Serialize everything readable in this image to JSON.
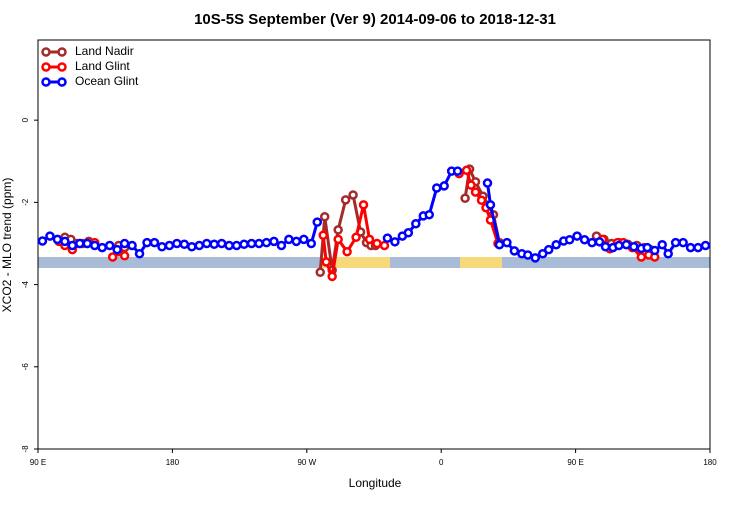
{
  "chart_data": {
    "type": "line",
    "title": "10S-5S September (Ver 9)   2014-09-06 to 2018-12-31",
    "x_label": "Longitude",
    "y_label": "XCO2 - MLO trend (ppm)",
    "xlim": [
      90,
      540
    ],
    "ylim": [
      -8,
      1.95
    ],
    "xticks": [
      {
        "value": 90,
        "label": "90 E"
      },
      {
        "value": 180,
        "label": "180"
      },
      {
        "value": 270,
        "label": "90 W"
      },
      {
        "value": 360,
        "label": "0"
      },
      {
        "value": 450,
        "label": "90 E"
      },
      {
        "value": 540,
        "label": "180"
      }
    ],
    "yticks": [
      -8,
      -6,
      -4,
      -2,
      0
    ],
    "legend": "top-left",
    "series": [
      {
        "name": "Land Nadir",
        "color": "#a52a2a",
        "x": [
          104,
          108,
          112,
          116,
          120,
          124,
          128,
          144,
          148,
          150,
          279,
          282,
          287,
          291,
          296,
          301,
          306,
          310,
          313,
          316,
          320,
          376,
          379,
          383,
          388,
          392,
          395,
          399,
          402,
          464,
          469,
          474,
          479,
          485,
          491,
          496,
          500
        ],
        "values": [
          -2.95,
          -2.85,
          -2.9,
          -3.0,
          -3.0,
          -2.95,
          null,
          -3.05,
          -3.1,
          null,
          -3.7,
          -2.35,
          -3.65,
          -2.67,
          -1.94,
          -1.82,
          -2.72,
          -2.98,
          -3.05,
          -3.05,
          null,
          -1.9,
          -1.19,
          -1.5,
          -1.85,
          -2.08,
          -2.3,
          -2.98,
          null,
          -2.82,
          -2.9,
          -3.0,
          -2.98,
          -3.02,
          -3.05,
          -3.1,
          -3.15
        ]
      },
      {
        "name": "Land Glint",
        "color": "#ff0000",
        "x": [
          105,
          108,
          113,
          118,
          123,
          128,
          132,
          140,
          144,
          148,
          150,
          281,
          283,
          287,
          291,
          297,
          303,
          308,
          312,
          317,
          322,
          325,
          372,
          377,
          380,
          383,
          387,
          390,
          393,
          398,
          402,
          468,
          473,
          478,
          482,
          488,
          494,
          499,
          503
        ],
        "values": [
          -2.95,
          -3.05,
          -3.15,
          -3.0,
          -3.0,
          -2.98,
          null,
          -3.33,
          -3.2,
          -3.3,
          null,
          -2.8,
          -3.45,
          -3.8,
          -2.9,
          -3.2,
          -2.85,
          -2.06,
          -2.9,
          -3.0,
          -3.05,
          null,
          -1.3,
          -1.22,
          -1.58,
          -1.75,
          -1.95,
          -2.13,
          -2.43,
          -3.0,
          null,
          -2.9,
          -3.13,
          -2.98,
          -2.98,
          -3.1,
          -3.33,
          -3.28,
          -3.33
        ]
      },
      {
        "name": "Ocean Glint",
        "color": "#0000ff",
        "x": [
          93,
          98,
          103,
          108,
          113,
          118,
          123,
          128,
          133,
          138,
          143,
          148,
          153,
          158,
          163,
          168,
          173,
          178,
          183,
          188,
          193,
          198,
          203,
          208,
          213,
          218,
          223,
          228,
          233,
          238,
          243,
          248,
          253,
          258,
          263,
          268,
          273,
          277,
          300,
          324,
          329,
          334,
          338,
          343,
          348,
          352,
          357,
          362,
          367,
          371,
          380,
          391,
          393,
          399,
          404,
          409,
          414,
          418,
          423,
          428,
          432,
          437,
          442,
          446,
          451,
          456,
          461,
          466,
          470,
          475,
          479,
          484,
          489,
          494,
          498,
          503,
          508,
          512,
          517,
          522,
          527,
          532,
          537
        ],
        "values": [
          -2.94,
          -2.82,
          -2.9,
          -2.95,
          -3.05,
          -3.0,
          -3.0,
          -3.05,
          -3.1,
          -3.05,
          -3.15,
          -3.0,
          -3.05,
          -3.25,
          -2.98,
          -2.98,
          -3.08,
          -3.05,
          -3.0,
          -3.02,
          -3.08,
          -3.05,
          -3.0,
          -3.02,
          -3.0,
          -3.05,
          -3.05,
          -3.02,
          -3.0,
          -3.0,
          -2.98,
          -2.95,
          -3.05,
          -2.9,
          -2.95,
          -2.9,
          -3.0,
          -2.48,
          null,
          -2.87,
          -2.96,
          -2.82,
          -2.74,
          -2.52,
          -2.33,
          -2.3,
          -1.65,
          -1.6,
          -1.24,
          -1.24,
          null,
          -1.53,
          -2.06,
          -3.03,
          -2.98,
          -3.18,
          -3.25,
          -3.28,
          -3.35,
          -3.25,
          -3.15,
          -3.03,
          -2.94,
          -2.91,
          -2.82,
          -2.91,
          -2.98,
          -2.96,
          -3.08,
          -3.1,
          -3.05,
          -3.03,
          -3.08,
          -3.12,
          -3.1,
          -3.17,
          -3.03,
          -3.25,
          -2.98,
          -2.98,
          -3.1,
          -3.1,
          -3.05
        ]
      }
    ]
  }
}
